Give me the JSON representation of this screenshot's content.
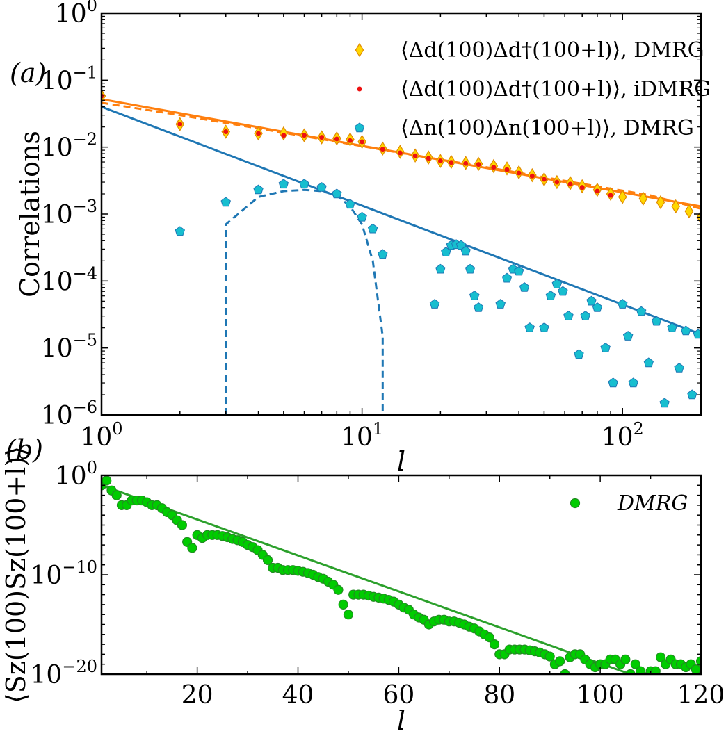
{
  "chart_data": [
    {
      "panel_label": "(a)",
      "type": "scatter",
      "xscale": "log",
      "yscale": "log",
      "xlim": [
        1,
        200
      ],
      "ylim": [
        1e-06,
        1
      ],
      "xlabel": "l",
      "ylabel": "Correlations",
      "xticks": [
        {
          "value": 1,
          "base": "10",
          "exp": "0"
        },
        {
          "value": 10,
          "base": "10",
          "exp": "1"
        },
        {
          "value": 100,
          "base": "10",
          "exp": "2"
        }
      ],
      "yticks": [
        {
          "value": 1e-06,
          "base": "10",
          "exp": "−6"
        },
        {
          "value": 1e-05,
          "base": "10",
          "exp": "−5"
        },
        {
          "value": 0.0001,
          "base": "10",
          "exp": "−4"
        },
        {
          "value": 0.001,
          "base": "10",
          "exp": "−3"
        },
        {
          "value": 0.01,
          "base": "10",
          "exp": "−2"
        },
        {
          "value": 0.1,
          "base": "10",
          "exp": "−1"
        },
        {
          "value": 1,
          "base": "10",
          "exp": "0"
        }
      ],
      "legend_position": "top-right",
      "series": [
        {
          "name": "⟨Δd(100)Δd†(100+l)⟩, DMRG",
          "marker": "diamond",
          "color": "#ffd700",
          "edge": "#e08a00",
          "x": [
            1,
            2,
            3,
            4,
            5,
            6,
            7,
            8,
            9,
            10,
            12,
            14,
            16,
            18,
            20,
            22,
            25,
            28,
            32,
            36,
            40,
            45,
            50,
            56,
            63,
            70,
            80,
            90,
            100,
            120,
            140,
            160,
            180,
            200
          ],
          "y": [
            0.058,
            0.022,
            0.017,
            0.016,
            0.016,
            0.015,
            0.014,
            0.0135,
            0.013,
            0.012,
            0.0095,
            0.0085,
            0.0075,
            0.007,
            0.0062,
            0.006,
            0.0058,
            0.0056,
            0.0052,
            0.0048,
            0.0042,
            0.0038,
            0.0033,
            0.003,
            0.0029,
            0.0026,
            0.0023,
            0.002,
            0.0018,
            0.0017,
            0.0015,
            0.0013,
            0.0011,
            0.0009
          ]
        },
        {
          "name": "⟨Δd(100)Δd†(100+l)⟩, iDMRG",
          "marker": "dot",
          "color": "#ee1111",
          "x": [
            1,
            2,
            3,
            4,
            5,
            6,
            7,
            8,
            9,
            10,
            12,
            14,
            16,
            18,
            20,
            22,
            25,
            28,
            32,
            36,
            40,
            45,
            50,
            56,
            63,
            70,
            80,
            90
          ],
          "y": [
            0.058,
            0.022,
            0.017,
            0.016,
            0.015,
            0.015,
            0.014,
            0.0132,
            0.0125,
            0.012,
            0.0093,
            0.0082,
            0.0074,
            0.0068,
            0.0062,
            0.0059,
            0.0057,
            0.0055,
            0.005,
            0.0046,
            0.0041,
            0.0037,
            0.0033,
            0.003,
            0.0028,
            0.0025,
            0.0022,
            0.0019
          ]
        },
        {
          "name": "⟨Δn(100)Δn(100+l)⟩, DMRG",
          "marker": "pentagon",
          "color": "#17becf",
          "edge": "#1f77b4",
          "x": [
            2,
            3,
            4,
            5,
            6,
            7,
            8,
            9,
            10,
            11,
            12,
            19,
            20,
            21,
            22,
            23,
            24,
            25,
            26,
            27,
            28,
            34,
            36,
            38,
            40,
            42,
            44,
            50,
            53,
            56,
            59,
            62,
            68,
            72,
            76,
            80,
            86,
            92,
            100,
            105,
            110,
            118,
            126,
            135,
            145,
            155,
            165,
            175,
            185,
            195
          ],
          "y": [
            0.00055,
            0.0015,
            0.0023,
            0.0028,
            0.0028,
            0.0025,
            0.002,
            0.0014,
            0.0009,
            0.0006,
            0.00025,
            4.5e-05,
            0.00015,
            0.00027,
            0.00034,
            0.00035,
            0.00034,
            0.00028,
            0.00015,
            6e-05,
            4e-05,
            4.5e-05,
            0.00011,
            0.00015,
            0.00014,
            8e-05,
            2e-05,
            2e-05,
            6e-05,
            9e-05,
            7e-05,
            3e-05,
            8e-06,
            3e-05,
            5e-05,
            4e-05,
            1e-05,
            3e-06,
            4.5e-05,
            1.5e-05,
            3e-06,
            3.5e-05,
            6e-06,
            2.5e-05,
            1.5e-06,
            2e-05,
            5e-06,
            1.8e-05,
            2e-06,
            1.6e-05
          ]
        }
      ],
      "fits": [
        {
          "style": "solid",
          "color": "#ff7f0e",
          "x": [
            1,
            200
          ],
          "y": [
            0.052,
            0.0013
          ]
        },
        {
          "style": "dashed",
          "color": "#ff7f0e",
          "x": [
            1,
            2,
            4,
            8,
            16,
            32,
            64,
            128,
            200
          ],
          "y": [
            0.046,
            0.03,
            0.019,
            0.012,
            0.0075,
            0.0048,
            0.003,
            0.0019,
            0.0012
          ]
        },
        {
          "style": "solid",
          "color": "#1f77b4",
          "x": [
            1,
            200
          ],
          "y": [
            0.04,
            1.6e-05
          ]
        },
        {
          "style": "dashed",
          "color": "#1f77b4",
          "x": [
            3,
            3,
            4,
            5,
            6,
            7,
            8,
            9,
            10,
            11,
            12,
            12
          ],
          "y": [
            1e-06,
            0.0007,
            0.0018,
            0.0022,
            0.0023,
            0.0022,
            0.0019,
            0.0013,
            0.0007,
            0.0002,
            1.5e-05,
            1e-06
          ]
        }
      ]
    },
    {
      "panel_label": "(b)",
      "type": "scatter",
      "xscale": "linear",
      "yscale": "log",
      "xlim": [
        1,
        120
      ],
      "ylim": [
        1e-20,
        1
      ],
      "xlabel": "l",
      "ylabel": "⟨Sz(100)Sz(100+l)⟩",
      "xticks": [
        20,
        40,
        60,
        80,
        100,
        120
      ],
      "yticks": [
        {
          "value": 1e-20,
          "base": "10",
          "exp": "−20"
        },
        {
          "value": 1e-10,
          "base": "10",
          "exp": "−10"
        },
        {
          "value": 1,
          "base": "10",
          "exp": "0"
        }
      ],
      "legend_position": "top-right",
      "series": [
        {
          "name": "DMRG",
          "marker": "circle",
          "color": "#00cc00",
          "edge": "#228b22",
          "x": [
            1,
            2,
            3,
            4,
            5,
            6,
            7,
            8,
            9,
            10,
            11,
            12,
            13,
            14,
            15,
            16,
            17,
            18,
            19,
            20,
            21,
            22,
            23,
            24,
            25,
            26,
            27,
            28,
            29,
            30,
            31,
            32,
            33,
            34,
            35,
            36,
            37,
            38,
            39,
            40,
            41,
            42,
            43,
            44,
            45,
            46,
            47,
            48,
            49,
            50,
            51,
            52,
            53,
            54,
            55,
            56,
            57,
            58,
            59,
            60,
            61,
            62,
            63,
            64,
            65,
            66,
            67,
            68,
            69,
            70,
            71,
            72,
            73,
            74,
            75,
            76,
            77,
            78,
            79,
            80,
            81,
            82,
            83,
            84,
            85,
            86,
            87,
            88,
            89,
            90,
            91,
            92,
            93,
            94,
            95,
            96,
            97,
            98,
            99,
            100,
            101,
            102,
            103,
            104,
            105,
            106,
            107,
            108,
            109,
            110,
            111,
            112,
            113,
            114,
            115,
            116,
            117,
            118,
            119,
            120
          ],
          "y": [
            0.1,
            0.3,
            0.03,
            0.01,
            0.001,
            0.001,
            0.003,
            0.003,
            0.003,
            0.002,
            0.001,
            0.001,
            0.0005,
            0.0002,
            0.0001,
            3e-05,
            1e-05,
            2e-07,
            5e-08,
            1e-06,
            5e-07,
            1e-06,
            1e-06,
            1e-06,
            8e-07,
            6e-07,
            4e-07,
            3e-07,
            2e-07,
            1e-07,
            6e-08,
            3e-08,
            1e-08,
            3e-09,
            5e-10,
            5e-10,
            3e-10,
            3e-10,
            3e-10,
            2.5e-10,
            2e-10,
            1.5e-10,
            1e-10,
            6e-11,
            4e-11,
            2e-11,
            1e-11,
            3e-12,
            1e-13,
            1e-14,
            1e-12,
            1e-12,
            1e-12,
            8e-13,
            6e-13,
            5e-13,
            4e-13,
            3e-13,
            2e-13,
            1e-13,
            5e-14,
            3e-14,
            1e-14,
            5e-15,
            3e-15,
            1e-15,
            2e-15,
            3e-15,
            3e-15,
            2e-15,
            2e-15,
            1.5e-15,
            1e-15,
            6e-16,
            4e-16,
            2e-16,
            1e-16,
            5e-17,
            1e-17,
            1e-18,
            1e-18,
            3e-18,
            3e-18,
            3e-18,
            3e-18,
            2.5e-18,
            2e-18,
            1.5e-18,
            1e-18,
            6e-19,
            1e-19,
            2e-19,
            1e-20,
            5e-19,
            1e-18,
            1e-18,
            3e-19,
            1e-19,
            5e-20,
            1e-19,
            1e-19,
            3e-19,
            3e-19,
            1e-19,
            3e-19,
            1e-20,
            1e-19,
            2e-20,
            5e-21,
            2e-20,
            2e-20,
            5e-19,
            1e-19,
            3e-19,
            1e-19,
            1e-19,
            5e-20,
            1e-19,
            3e-20,
            2e-19
          ]
        }
      ],
      "fits": [
        {
          "style": "solid",
          "color": "#2ca02c",
          "x": [
            1,
            106
          ],
          "y": [
            0.1,
            1e-20
          ]
        }
      ]
    }
  ]
}
